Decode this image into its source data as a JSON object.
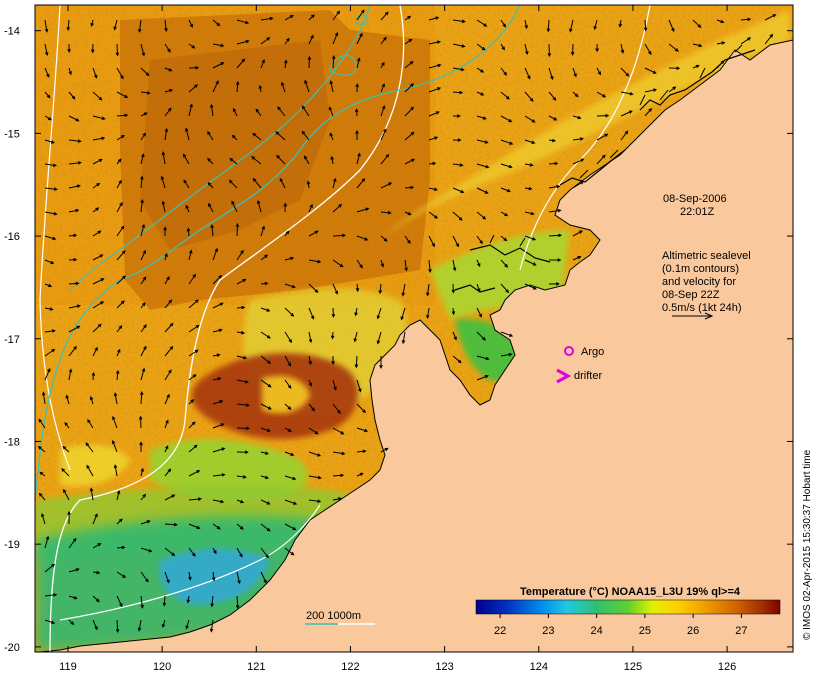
{
  "map": {
    "lon_ticks": [
      "119",
      "120",
      "121",
      "122",
      "123",
      "124",
      "125",
      "126"
    ],
    "lat_ticks": [
      "-14",
      "-15",
      "-16",
      "-17",
      "-18",
      "-19",
      "-20"
    ],
    "lon_range": [
      118.65,
      126.7
    ],
    "lat_range": [
      -13.75,
      -20.05
    ]
  },
  "annotations": {
    "date_line1": "08-Sep-2006",
    "date_line2": "22:01Z",
    "alt_line1": "Altimetric sealevel",
    "alt_line2": "(0.1m contours)",
    "alt_line3": "and velocity for",
    "alt_line4": "08-Sep 22Z",
    "alt_line5": "0.5m/s (1kt 24h)",
    "argo_label": "Argo",
    "drifter_label": "drifter",
    "depth_legend": "200  1000m"
  },
  "colorbar": {
    "title": "Temperature (°C) NOAA15_L3U 19% ql>=4",
    "ticks": [
      "22",
      "23",
      "24",
      "25",
      "26",
      "27"
    ],
    "range": [
      21.5,
      27.8
    ]
  },
  "credit": "© IMOS 02-Apr-2015 15:30:37 Hobart time",
  "colors": {
    "land": "#f9c99d",
    "bathy_200": "#40c0b0",
    "bathy_1000": "#ffffff",
    "argo": "#e000e0",
    "drifter": "#e000e0"
  },
  "icons": [
    "argo-marker-icon",
    "drifter-marker-icon",
    "velocity-scale-arrow-icon"
  ]
}
